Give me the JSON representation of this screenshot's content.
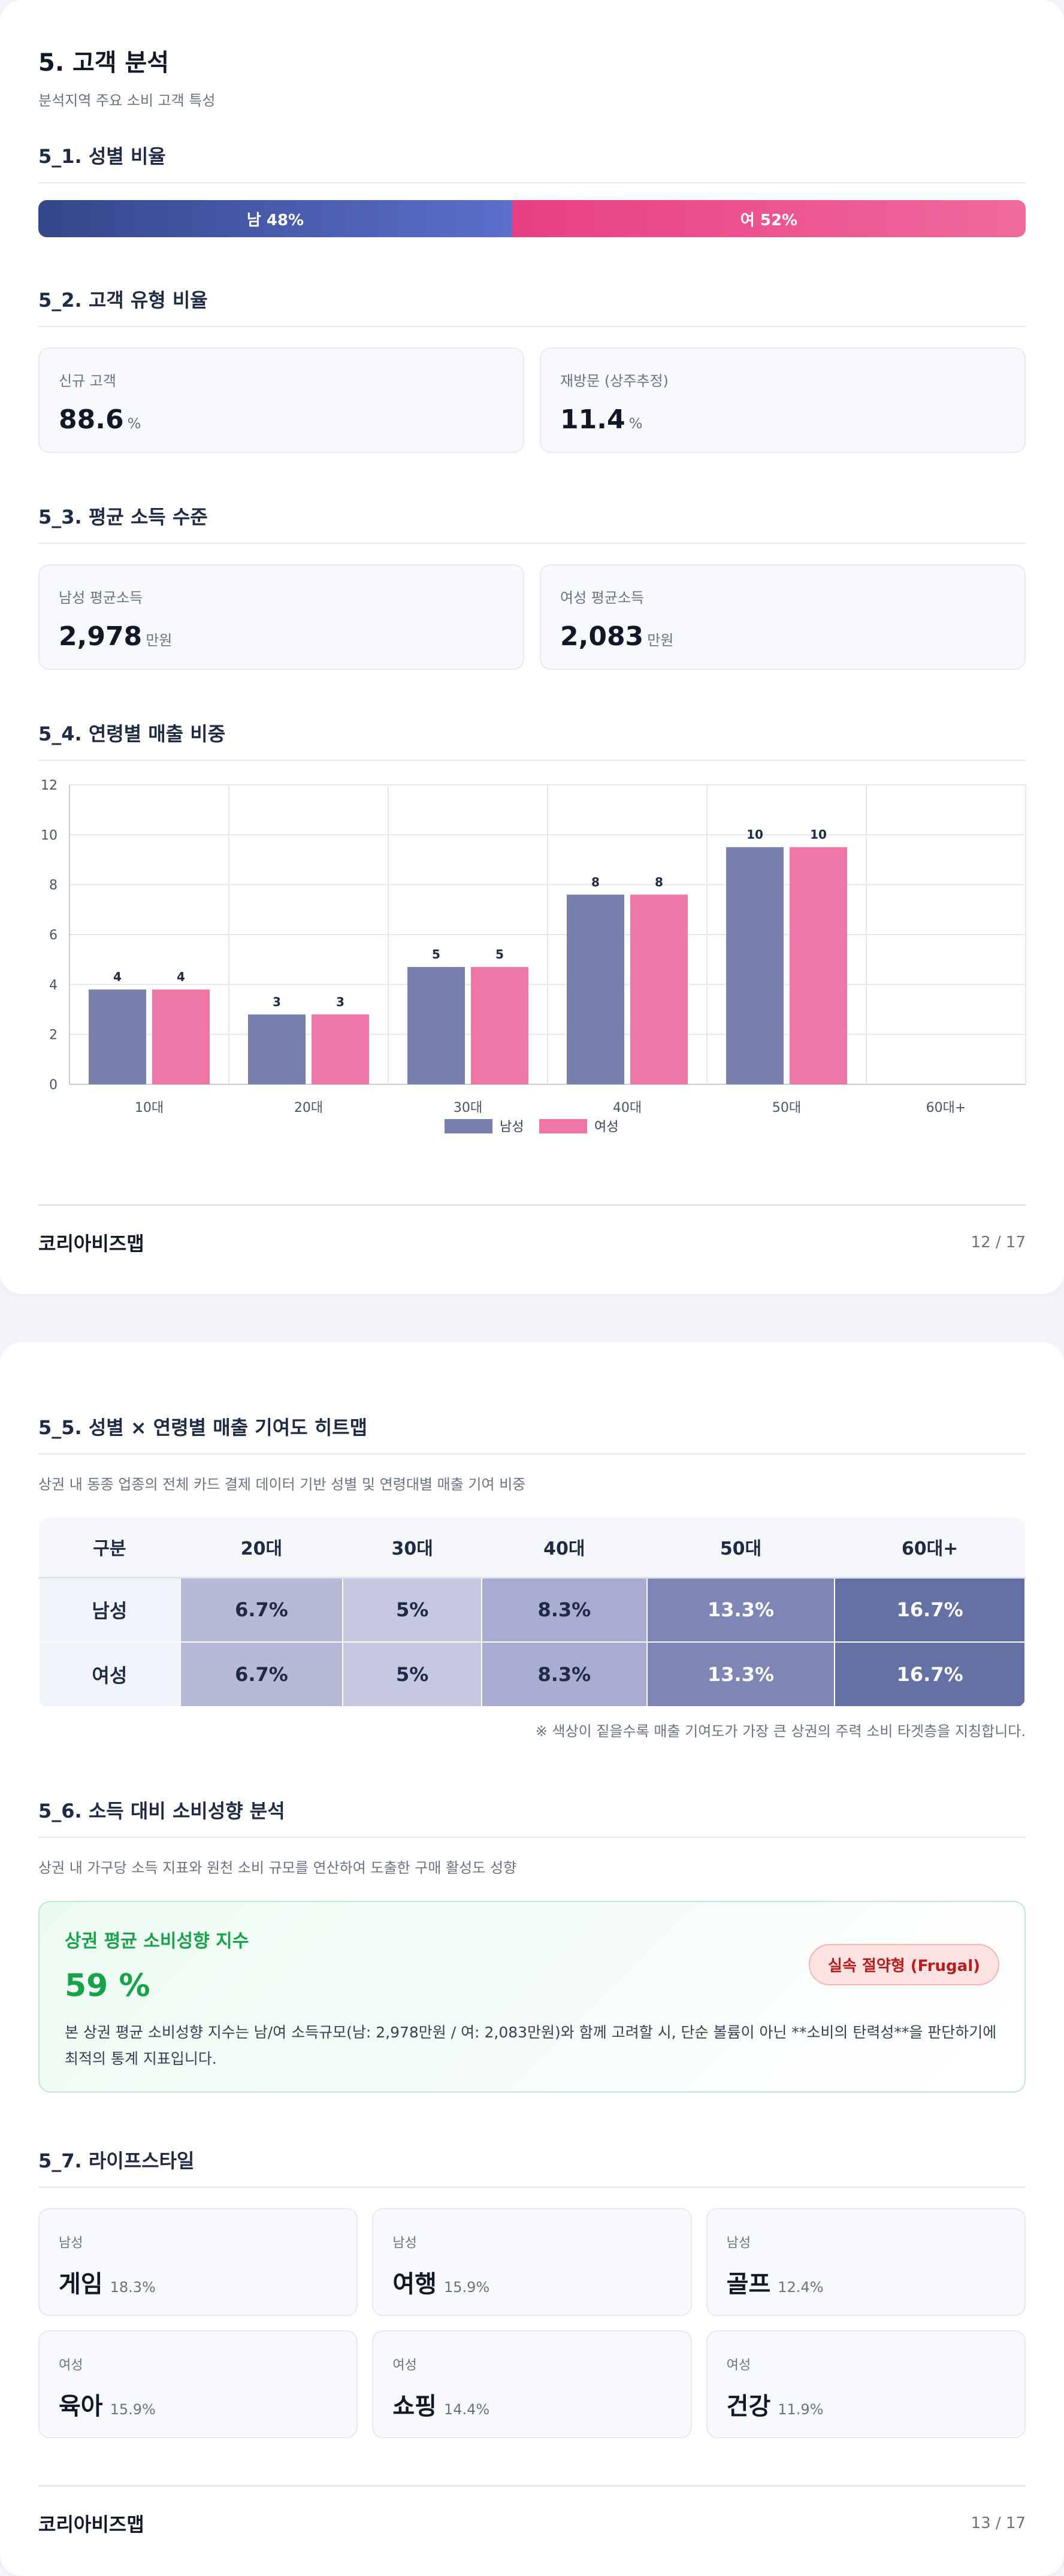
{
  "page1": {
    "title": "5. 고객 분석",
    "subtitle": "분석지역 주요 소비 고객 특성",
    "gender": {
      "heading": "5_1. 성별 비율",
      "male_label": "남 48%",
      "female_label": "여 52%",
      "male_pct": 48,
      "female_pct": 52,
      "male_color": "#35468a",
      "female_color": "#e83f84"
    },
    "customer_type": {
      "heading": "5_2. 고객 유형 비율",
      "new_label": "신규 고객",
      "new_value": "88.6",
      "new_unit": "%",
      "return_label": "재방문 (상주추정)",
      "return_value": "11.4",
      "return_unit": "%"
    },
    "income": {
      "heading": "5_3. 평균 소득 수준",
      "male_label": "남성 평균소득",
      "male_value": "2,978",
      "male_unit": "만원",
      "female_label": "여성 평균소득",
      "female_value": "2,083",
      "female_unit": "만원"
    },
    "age_chart": {
      "heading": "5_4. 연령별 매출 비중"
    },
    "footer": {
      "brand": "코리아비즈맵",
      "page": "12 / 17"
    }
  },
  "chart_data": {
    "type": "bar",
    "categories": [
      "10대",
      "20대",
      "30대",
      "40대",
      "50대",
      "60대+"
    ],
    "series": [
      {
        "name": "남성",
        "values": [
          3.8,
          2.8,
          4.7,
          7.6,
          9.5,
          0
        ],
        "labels": [
          "4",
          "3",
          "5",
          "8",
          "10",
          ""
        ],
        "color": "#7880ae"
      },
      {
        "name": "여성",
        "values": [
          3.8,
          2.8,
          4.7,
          7.6,
          9.5,
          0
        ],
        "labels": [
          "4",
          "3",
          "5",
          "8",
          "10",
          ""
        ],
        "color": "#ee77a7"
      }
    ],
    "y_ticks": [
      0,
      2,
      4,
      6,
      8,
      10,
      12
    ],
    "ylim": [
      0,
      12
    ],
    "legend": "bottom",
    "grid": true
  },
  "page2": {
    "heatmap": {
      "heading": "5_5. 성별 × 연령별 매출 기여도 히트맵",
      "description": "상권 내 동종 업종의 전체 카드 결제 데이터 기반 성별 및 연령대별 매출 기여 비중",
      "headers": [
        "구분",
        "20대",
        "30대",
        "40대",
        "50대",
        "60대+"
      ],
      "rows": [
        {
          "label": "남성",
          "cells": [
            "6.7%",
            "5%",
            "8.3%",
            "13.3%",
            "16.7%"
          ]
        },
        {
          "label": "여성",
          "cells": [
            "6.7%",
            "5%",
            "8.3%",
            "13.3%",
            "16.7%"
          ]
        }
      ],
      "cell_colors": [
        "#b6bad8",
        "#c5c8e0",
        "#a7acd0",
        "#7e86b5",
        "#6570a4"
      ],
      "cell_text_colors": [
        "#1f2a44",
        "#1f2a44",
        "#1f2a44",
        "#ffffff",
        "#ffffff"
      ],
      "note": "※ 색상이 짙을수록 매출 기여도가 가장 큰 상권의 주력 소비 타겟층을 지칭합니다."
    },
    "propensity": {
      "heading": "5_6. 소득 대비 소비성향 분석",
      "description": "상권 내 가구당 소득 지표와 원천 소비 규모를 연산하여 도출한 구매 활성도 성향",
      "card_title": "상권 평균 소비성향 지수",
      "card_value": "59 %",
      "badge": "실속 절약형 (Frugal)",
      "card_desc": "본 상권 평균 소비성향 지수는 남/여 소득규모(남: 2,978만원 / 여: 2,083만원)와 함께 고려할 시, 단순 볼륨이 아닌 **소비의 탄력성**을 판단하기에 최적의 통계 지표입니다."
    },
    "lifestyle": {
      "heading": "5_7. 라이프스타일",
      "items": [
        {
          "gender": "남성",
          "name": "게임",
          "pct": "18.3%"
        },
        {
          "gender": "남성",
          "name": "여행",
          "pct": "15.9%"
        },
        {
          "gender": "남성",
          "name": "골프",
          "pct": "12.4%"
        },
        {
          "gender": "여성",
          "name": "육아",
          "pct": "15.9%"
        },
        {
          "gender": "여성",
          "name": "쇼핑",
          "pct": "14.4%"
        },
        {
          "gender": "여성",
          "name": "건강",
          "pct": "11.9%"
        }
      ]
    },
    "footer": {
      "brand": "코리아비즈맵",
      "page": "13 / 17"
    }
  }
}
